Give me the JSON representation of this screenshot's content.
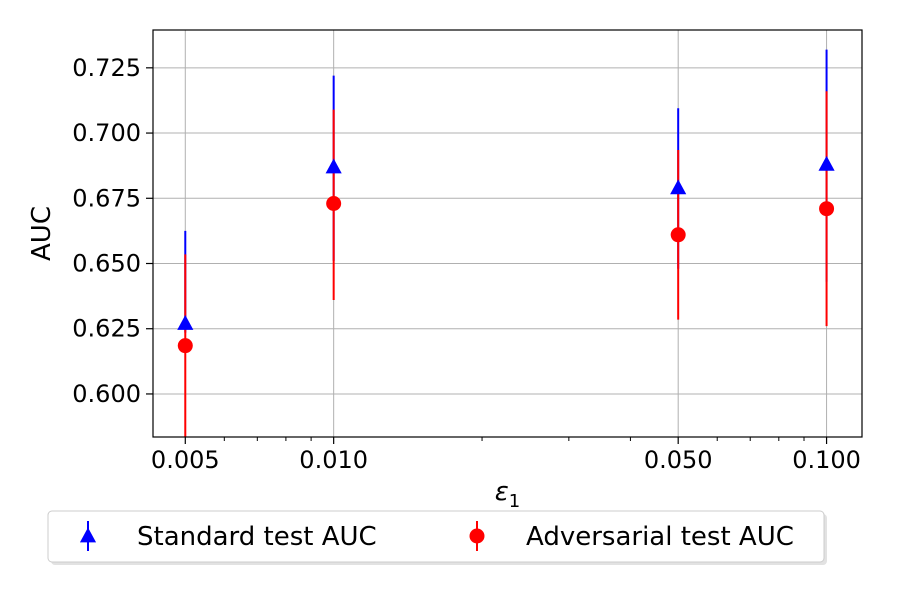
{
  "chart_data": {
    "type": "scatter",
    "xlabel": "ε",
    "xlabel_subscript": "1",
    "ylabel": "AUC",
    "xscale": "log",
    "xlim": [
      0.0043,
      0.118
    ],
    "ylim": [
      0.5835,
      0.7395
    ],
    "x_ticks": [
      0.005,
      0.01,
      0.05,
      0.1
    ],
    "x_tick_labels": [
      "0.005",
      "0.010",
      "0.050",
      "0.100"
    ],
    "y_ticks": [
      0.6,
      0.625,
      0.65,
      0.675,
      0.7,
      0.725
    ],
    "y_tick_labels": [
      "0.600",
      "0.625",
      "0.650",
      "0.675",
      "0.700",
      "0.725"
    ],
    "grid": true,
    "legend_position": "bottom, below axes",
    "series": [
      {
        "name": "Standard test AUC",
        "color": "#0000ff",
        "marker": "triangle-up",
        "x": [
          0.005,
          0.01,
          0.05,
          0.1
        ],
        "y": [
          0.627,
          0.687,
          0.679,
          0.688
        ],
        "err_low": [
          0.6235,
          0.651,
          0.648,
          0.643
        ],
        "err_high": [
          0.6625,
          0.722,
          0.7095,
          0.732
        ]
      },
      {
        "name": "Adversarial test AUC",
        "color": "#ff0000",
        "marker": "circle",
        "x": [
          0.005,
          0.01,
          0.05,
          0.1
        ],
        "y": [
          0.6185,
          0.673,
          0.661,
          0.671
        ],
        "err_low": [
          0.5835,
          0.636,
          0.6285,
          0.626
        ],
        "err_high": [
          0.6535,
          0.709,
          0.6935,
          0.716
        ]
      }
    ]
  }
}
